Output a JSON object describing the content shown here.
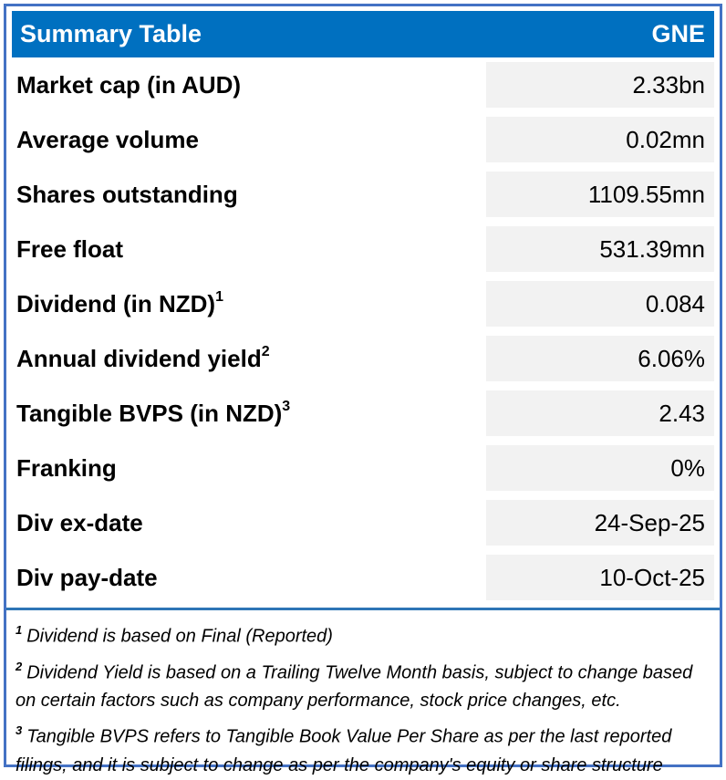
{
  "header": {
    "title": "Summary Table",
    "ticker": "GNE"
  },
  "table": {
    "rows": [
      {
        "label": "Market cap (in AUD)",
        "sup": "",
        "value": "2.33bn"
      },
      {
        "label": "Average volume",
        "sup": "",
        "value": "0.02mn"
      },
      {
        "label": "Shares outstanding",
        "sup": "",
        "value": "1109.55mn"
      },
      {
        "label": "Free float",
        "sup": "",
        "value": "531.39mn"
      },
      {
        "label": "Dividend (in NZD)",
        "sup": "1",
        "value": "0.084"
      },
      {
        "label": "Annual dividend yield",
        "sup": "2",
        "value": "6.06%"
      },
      {
        "label": "Tangible BVPS (in NZD)",
        "sup": "3",
        "value": "2.43"
      },
      {
        "label": "Franking",
        "sup": "",
        "value": "0%"
      },
      {
        "label": "Div ex-date",
        "sup": "",
        "value": "24-Sep-25"
      },
      {
        "label": "Div pay-date",
        "sup": "",
        "value": "10-Oct-25"
      }
    ]
  },
  "footnotes": [
    {
      "sup": "1",
      "text": "Dividend is based on Final (Reported)"
    },
    {
      "sup": "2",
      "text": "Dividend Yield is based on a Trailing Twelve Month basis, subject to change based on certain factors such as company performance, stock price changes, etc."
    },
    {
      "sup": "3",
      "text": "Tangible BVPS refers to Tangible Book Value Per Share as per the last reported filings, and it is subject to change as per the company's equity or share structure"
    }
  ],
  "colors": {
    "header_bg": "#0070C0",
    "outer_border": "#4472C4",
    "separator": "#2E75B6",
    "value_cell_bg": "#F2F2F2"
  }
}
